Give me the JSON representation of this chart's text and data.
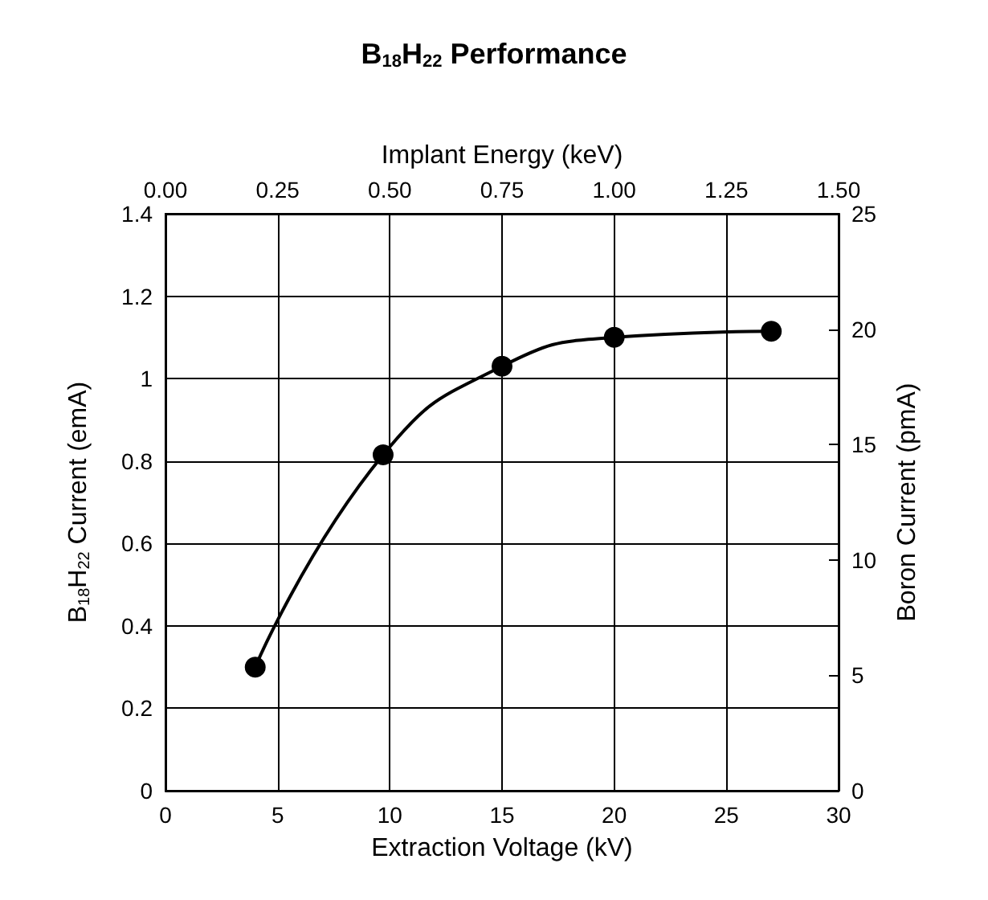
{
  "chart_data": {
    "type": "line",
    "title": "B$_{18}$H$_{22}$ Performance",
    "xlabel": "Extraction Voltage (kV)",
    "ylabel": "B$_{18}$H$_{22}$ Current (emA)",
    "y2label": "Boron Current (pmA)",
    "x2label": "Implant Energy (keV)",
    "x": [
      4,
      9.7,
      15,
      20,
      27
    ],
    "series": [
      {
        "color": "#000000",
        "values": [
          0.3,
          0.815,
          1.03,
          1.1,
          1.115
        ]
      }
    ],
    "xlim": [
      0,
      30
    ],
    "xticks": [
      0,
      5,
      10,
      15,
      20,
      25,
      30
    ],
    "ylim": [
      0,
      1.4
    ],
    "yticks": [
      0,
      0.2,
      0.4,
      0.6,
      0.8,
      1,
      1.2,
      1.4
    ],
    "y2lim": [
      0,
      25
    ],
    "y2ticks": [
      0,
      5,
      10,
      15,
      20,
      25
    ],
    "x2lim": [
      0,
      1.5
    ],
    "x2ticks": [
      {
        "value": 0,
        "label": "0.00"
      },
      {
        "value": 0.25,
        "label": "0.25"
      },
      {
        "value": 0.5,
        "label": "0.50"
      },
      {
        "value": 0.75,
        "label": "0.75"
      },
      {
        "value": 1,
        "label": "1.00"
      },
      {
        "value": 1.25,
        "label": "1.25"
      },
      {
        "value": 1.5,
        "label": "1.50"
      }
    ],
    "grid": true,
    "marker": "circle",
    "line_style": "solid"
  }
}
